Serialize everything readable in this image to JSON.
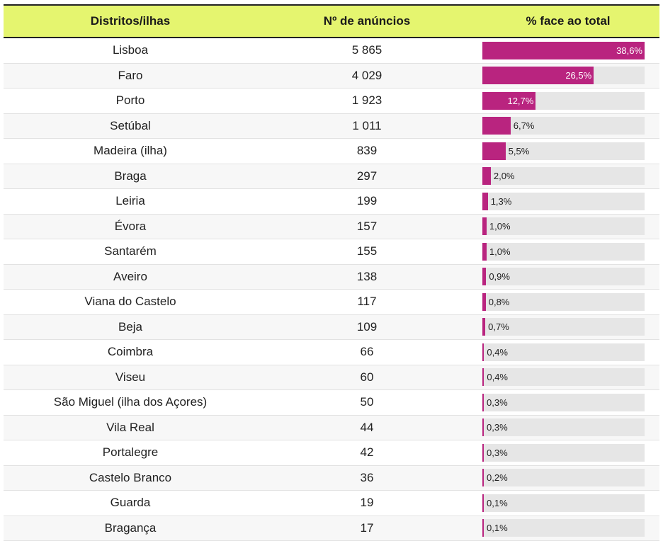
{
  "header": {
    "col_region": "Distritos/ilhas",
    "col_count": "Nº de anúncios",
    "col_pct": "% face ao total"
  },
  "colors": {
    "header_bg": "#e5f56f",
    "bar": "#b9247f",
    "track": "#e6e6e6"
  },
  "chart_data": {
    "type": "table",
    "columns": [
      "Distritos/ilhas",
      "Nº de anúncios",
      "% face ao total"
    ],
    "rows": [
      {
        "name": "Lisboa",
        "count": "5 865",
        "pct_label": "38,6%",
        "pct": 38.6
      },
      {
        "name": "Faro",
        "count": "4 029",
        "pct_label": "26,5%",
        "pct": 26.5
      },
      {
        "name": "Porto",
        "count": "1 923",
        "pct_label": "12,7%",
        "pct": 12.7
      },
      {
        "name": "Setúbal",
        "count": "1 011",
        "pct_label": "6,7%",
        "pct": 6.7
      },
      {
        "name": "Madeira (ilha)",
        "count": "839",
        "pct_label": "5,5%",
        "pct": 5.5
      },
      {
        "name": "Braga",
        "count": "297",
        "pct_label": "2,0%",
        "pct": 2.0
      },
      {
        "name": "Leiria",
        "count": "199",
        "pct_label": "1,3%",
        "pct": 1.3
      },
      {
        "name": "Évora",
        "count": "157",
        "pct_label": "1,0%",
        "pct": 1.0
      },
      {
        "name": "Santarém",
        "count": "155",
        "pct_label": "1,0%",
        "pct": 1.0
      },
      {
        "name": "Aveiro",
        "count": "138",
        "pct_label": "0,9%",
        "pct": 0.9
      },
      {
        "name": "Viana do Castelo",
        "count": "117",
        "pct_label": "0,8%",
        "pct": 0.8
      },
      {
        "name": "Beja",
        "count": "109",
        "pct_label": "0,7%",
        "pct": 0.7
      },
      {
        "name": "Coimbra",
        "count": "66",
        "pct_label": "0,4%",
        "pct": 0.4
      },
      {
        "name": "Viseu",
        "count": "60",
        "pct_label": "0,4%",
        "pct": 0.4
      },
      {
        "name": "São Miguel (ilha dos Açores)",
        "count": "50",
        "pct_label": "0,3%",
        "pct": 0.3
      },
      {
        "name": "Vila Real",
        "count": "44",
        "pct_label": "0,3%",
        "pct": 0.3
      },
      {
        "name": "Portalegre",
        "count": "42",
        "pct_label": "0,3%",
        "pct": 0.3
      },
      {
        "name": "Castelo Branco",
        "count": "36",
        "pct_label": "0,2%",
        "pct": 0.2
      },
      {
        "name": "Guarda",
        "count": "19",
        "pct_label": "0,1%",
        "pct": 0.1
      },
      {
        "name": "Bragança",
        "count": "17",
        "pct_label": "0,1%",
        "pct": 0.1
      }
    ],
    "bar_max_pct": 38.6
  }
}
